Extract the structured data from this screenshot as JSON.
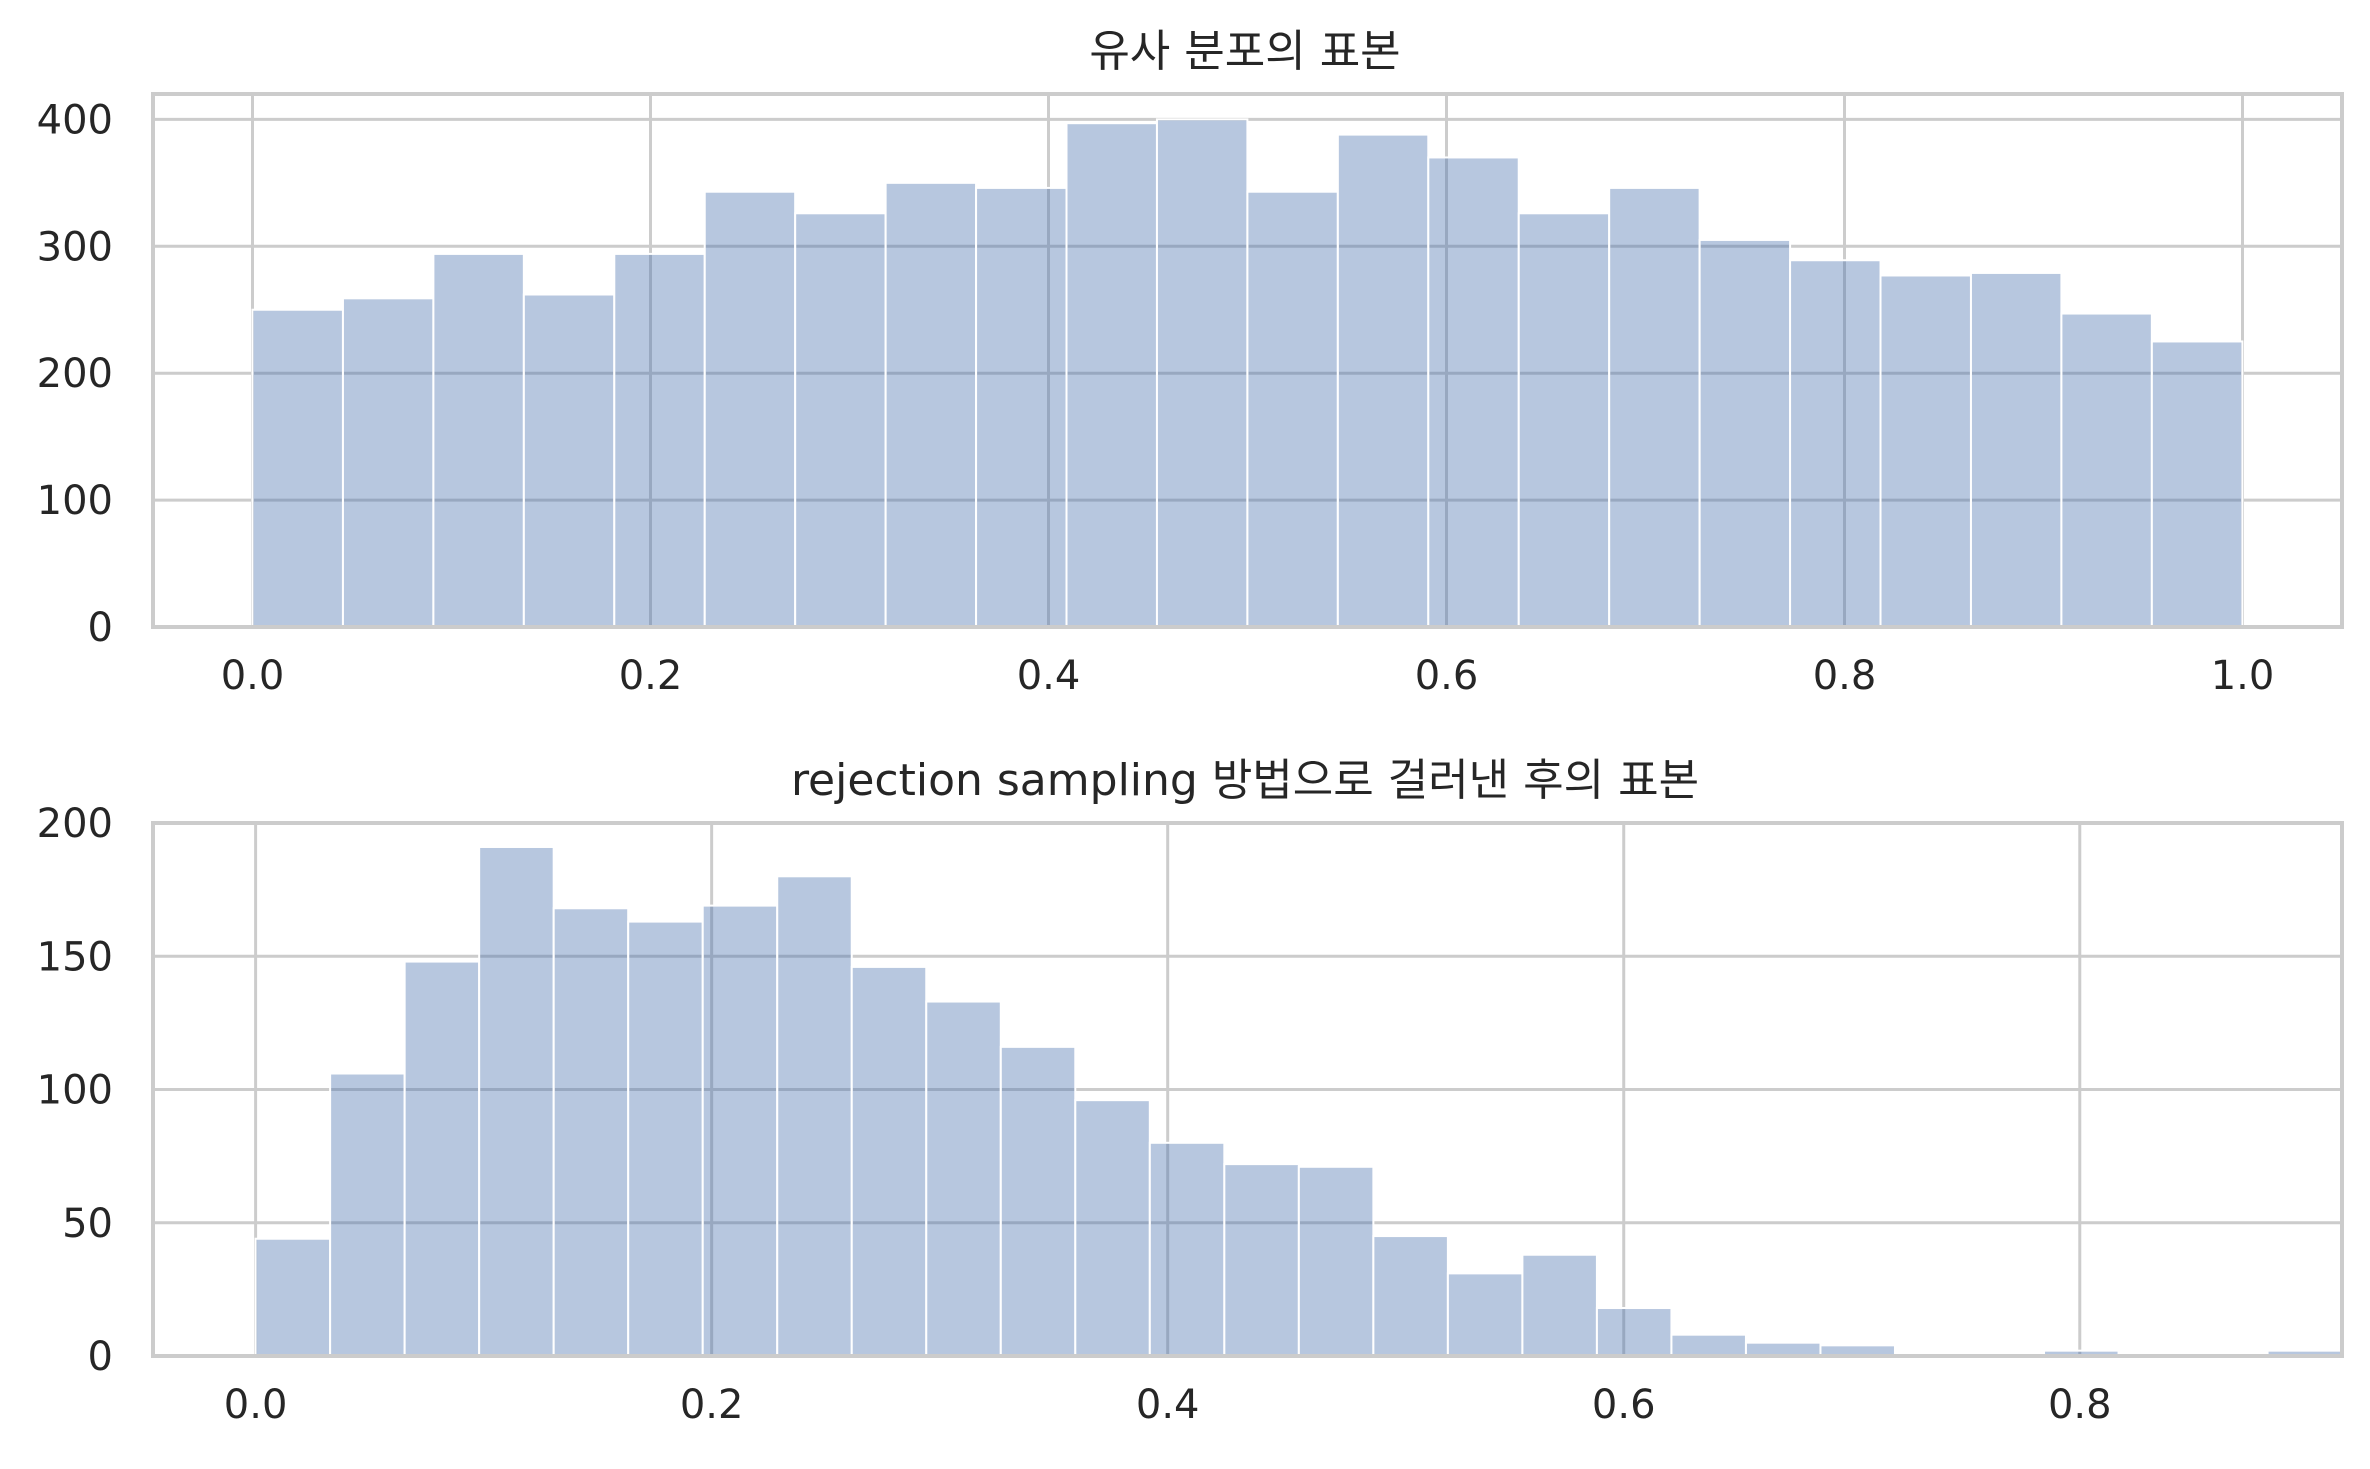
{
  "chart_data": [
    {
      "type": "bar",
      "title": "유사 분포의 표본",
      "xlabel": "",
      "ylabel": "",
      "bin_start": 0.0,
      "bin_width": 0.04545,
      "values": [
        250,
        259,
        294,
        262,
        294,
        343,
        326,
        350,
        346,
        397,
        400,
        343,
        388,
        370,
        326,
        346,
        305,
        289,
        277,
        279,
        247,
        225
      ],
      "xlim": [
        -0.05,
        1.05
      ],
      "ylim": [
        0,
        420
      ],
      "xticks": [
        0.0,
        0.2,
        0.4,
        0.6,
        0.8,
        1.0
      ],
      "xtick_labels": [
        "0.0",
        "0.2",
        "0.4",
        "0.6",
        "0.8",
        "1.0"
      ],
      "yticks": [
        0,
        100,
        200,
        300,
        400
      ],
      "ytick_labels": [
        "0",
        "100",
        "200",
        "300",
        "400"
      ],
      "grid": true,
      "color": "#4c72b0",
      "alpha": 0.4
    },
    {
      "type": "bar",
      "title": "rejection sampling 방법으로 걸러낸 후의 표본",
      "xlabel": "",
      "ylabel": "",
      "bin_start": 0.0,
      "bin_width": 0.03268,
      "values": [
        44,
        106,
        148,
        191,
        168,
        163,
        169,
        180,
        146,
        133,
        116,
        96,
        80,
        72,
        71,
        45,
        31,
        38,
        18,
        8,
        5,
        4,
        1,
        1,
        2,
        0,
        1,
        2
      ],
      "xlim": [
        -0.045,
        0.915
      ],
      "ylim": [
        0,
        200
      ],
      "xticks": [
        0.0,
        0.2,
        0.4,
        0.6,
        0.8
      ],
      "xtick_labels": [
        "0.0",
        "0.2",
        "0.4",
        "0.6",
        "0.8"
      ],
      "yticks": [
        0,
        50,
        100,
        150,
        200
      ],
      "ytick_labels": [
        "0",
        "50",
        "100",
        "150",
        "200"
      ],
      "grid": true,
      "color": "#4c72b0",
      "alpha": 0.4
    }
  ]
}
